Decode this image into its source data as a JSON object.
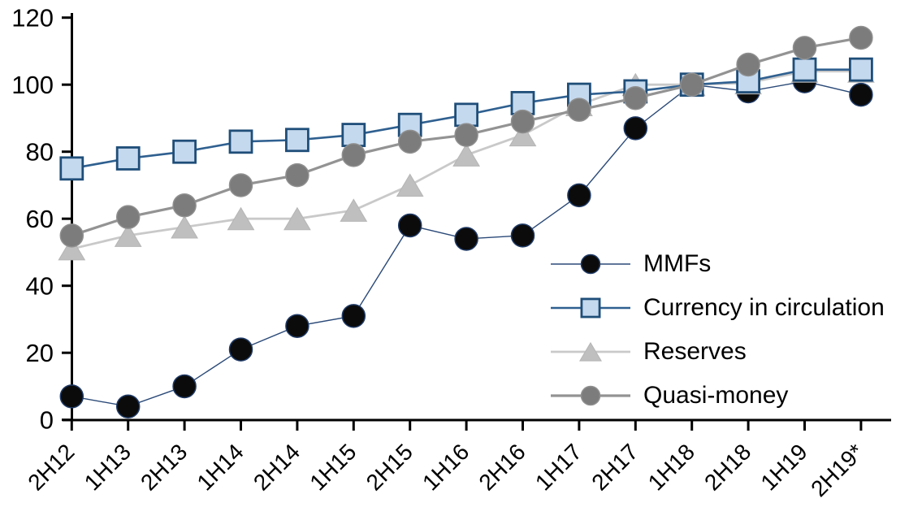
{
  "chart_data": {
    "type": "line",
    "title": "",
    "xlabel": "",
    "ylabel": "",
    "categories": [
      "2H12",
      "1H13",
      "2H13",
      "1H14",
      "2H14",
      "1H15",
      "2H15",
      "1H16",
      "2H16",
      "1H17",
      "2H17",
      "1H18",
      "2H18",
      "1H19",
      "2H19*"
    ],
    "y_axis": {
      "min": 0,
      "max": 120,
      "ticks": [
        0,
        20,
        40,
        60,
        80,
        100,
        120
      ]
    },
    "axis_color": "#000000",
    "grid": "off",
    "legend_position": "inside-right",
    "series": [
      {
        "key": "mmfs",
        "name": "MMFs",
        "z": 0,
        "marker": "circle",
        "marker_fill": "#0b0b0b",
        "marker_stroke": "#1f3a66",
        "line_color": "#2b4a78",
        "line_width": 1.4,
        "values": [
          7,
          4,
          10,
          21,
          28,
          31,
          58,
          54,
          55,
          67,
          87,
          100,
          98,
          101,
          97
        ]
      },
      {
        "key": "currency-in-circulation",
        "name": "Currency in circulation",
        "z": 2,
        "marker": "square",
        "marker_fill": "#c5d9ee",
        "marker_stroke": "#1f4e79",
        "line_color": "#2f6090",
        "line_width": 2.6,
        "values": [
          75,
          78,
          80,
          83,
          83.5,
          85,
          88,
          91,
          94.5,
          97,
          98,
          100,
          101,
          104.5,
          104.5
        ]
      },
      {
        "key": "reserves",
        "name": "Reserves",
        "z": 1,
        "marker": "triangle",
        "marker_fill": "#bfbfbf",
        "marker_stroke": "#b5b5b5",
        "line_color": "#c9c9c9",
        "line_width": 2.8,
        "values": [
          51,
          55,
          57.5,
          60,
          60,
          62.5,
          70,
          79,
          85,
          94,
          100,
          100,
          100.5,
          104,
          104
        ]
      },
      {
        "key": "quasi-money",
        "name": "Quasi-money",
        "z": 3,
        "marker": "circle",
        "marker_fill": "#7c7c7c",
        "marker_stroke": "#8f8f8f",
        "line_color": "#939393",
        "line_width": 3.2,
        "values": [
          55,
          60.5,
          64,
          70,
          73,
          79,
          83,
          85,
          89,
          92.5,
          96,
          100,
          106,
          111,
          114
        ]
      }
    ]
  }
}
